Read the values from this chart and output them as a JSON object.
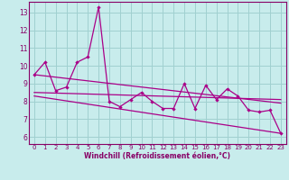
{
  "xlabel": "Windchill (Refroidissement éolien,°C)",
  "background_color": "#c8ecec",
  "grid_color": "#a0d0d0",
  "line_color": "#aa0088",
  "xlim": [
    -0.5,
    23.5
  ],
  "ylim": [
    5.6,
    13.6
  ],
  "yticks": [
    6,
    7,
    8,
    9,
    10,
    11,
    12,
    13
  ],
  "xticks": [
    0,
    1,
    2,
    3,
    4,
    5,
    6,
    7,
    8,
    9,
    10,
    11,
    12,
    13,
    14,
    15,
    16,
    17,
    18,
    19,
    20,
    21,
    22,
    23
  ],
  "series1_x": [
    0,
    1,
    2,
    3,
    4,
    5,
    6,
    7,
    8,
    9,
    10,
    11,
    12,
    13,
    14,
    15,
    16,
    17,
    18,
    19,
    20,
    21,
    22,
    23
  ],
  "series1_y": [
    9.5,
    10.2,
    8.6,
    8.8,
    10.2,
    10.5,
    13.3,
    8.0,
    7.7,
    8.1,
    8.5,
    8.0,
    7.6,
    7.6,
    9.0,
    7.6,
    8.9,
    8.1,
    8.7,
    8.3,
    7.5,
    7.4,
    7.5,
    6.2
  ],
  "series2_x": [
    0,
    23
  ],
  "series2_y": [
    9.5,
    7.9
  ],
  "series3_x": [
    0,
    23
  ],
  "series3_y": [
    8.5,
    8.1
  ],
  "series4_x": [
    0,
    23
  ],
  "series4_y": [
    8.3,
    6.2
  ],
  "tick_fontsize": 5.0,
  "xlabel_fontsize": 5.5
}
